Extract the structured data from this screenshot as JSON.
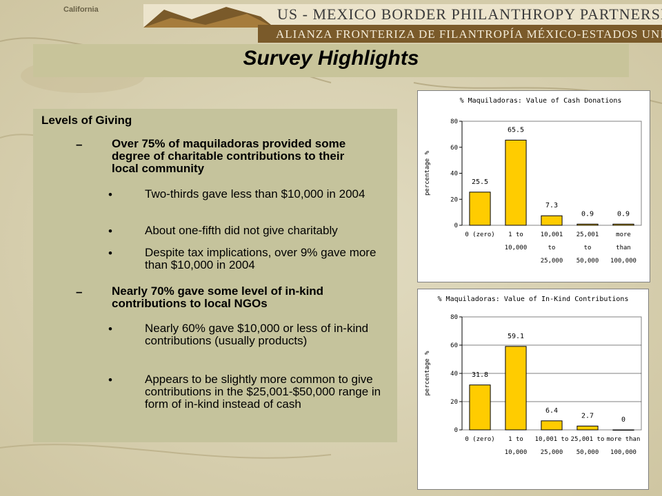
{
  "header": {
    "title_en": "US - MEXICO BORDER PHILANTHROPY PARTNERSHIP",
    "title_es": "ALIANZA FRONTERIZA DE FILANTROPÍA MÉXICO-ESTADOS UNIDOS",
    "map_label": "California"
  },
  "slide": {
    "title": "Survey Highlights",
    "heading": "Levels of Giving",
    "dash": "–",
    "bullet": "•",
    "point1": "Over 75% of maquiladoras provided some degree of charitable contributions to their local community",
    "point1_sub": [
      "Two-thirds gave less than $10,000 in 2004",
      "About one-fifth did not give charitably",
      "Despite tax implications, over 9% gave more than $10,000 in 2004"
    ],
    "point2": "Nearly 70% gave some level of in-kind contributions to local NGOs",
    "point2_sub": [
      "Nearly 60% gave $10,000 or less of in-kind contributions (usually products)",
      "Appears to be slightly more common to give contributions in the $25,001-$50,000 range in form of in-kind instead of cash"
    ]
  },
  "chart_data": [
    {
      "type": "bar",
      "title": "% Maquiladoras: Value of Cash Donations",
      "ylabel": "percentage %",
      "xlabel": "",
      "categories": [
        [
          "0 (zero)"
        ],
        [
          "1 to",
          "10,000"
        ],
        [
          "10,001",
          "to",
          "25,000"
        ],
        [
          "25,001",
          "to",
          "50,000"
        ],
        [
          "more",
          "than",
          "100,000"
        ]
      ],
      "values": [
        25.5,
        65.5,
        7.3,
        0.9,
        0.9
      ],
      "data_labels": [
        "25.5",
        "65.5",
        "7.3",
        "0.9",
        "0.9"
      ],
      "ylim": [
        0,
        80
      ],
      "yticks": [
        0,
        20,
        40,
        60,
        80
      ],
      "bar_color": "#ffcc00",
      "grid": false
    },
    {
      "type": "bar",
      "title": "% Maquiladoras: Value of In-Kind Contributions",
      "ylabel": "percentage %",
      "xlabel": "",
      "categories": [
        [
          "0 (zero)"
        ],
        [
          "1 to",
          "10,000"
        ],
        [
          "10,001 to",
          "25,000"
        ],
        [
          "25,001 to",
          "50,000"
        ],
        [
          "more than",
          "100,000"
        ]
      ],
      "values": [
        31.8,
        59.1,
        6.4,
        2.7,
        0
      ],
      "data_labels": [
        "31.8",
        "59.1",
        "6.4",
        "2.7",
        "0"
      ],
      "ylim": [
        0,
        80
      ],
      "yticks": [
        0,
        20,
        40,
        60,
        80
      ],
      "bar_color": "#ffcc00",
      "grid": true
    }
  ]
}
